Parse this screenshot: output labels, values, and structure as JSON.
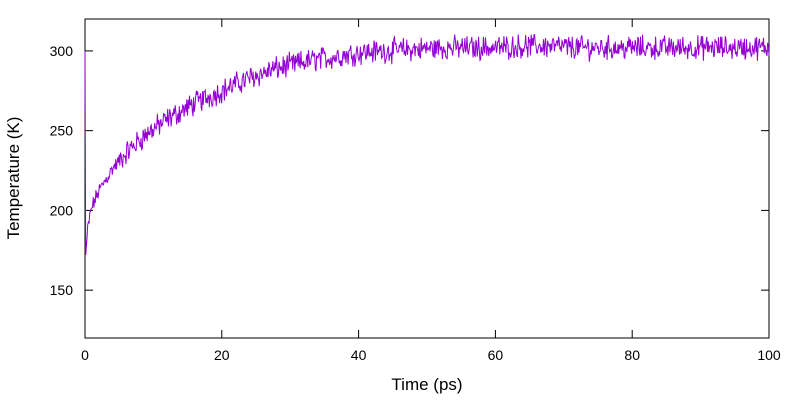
{
  "chart_data": {
    "type": "line",
    "title": "",
    "xlabel": "Time (ps)",
    "ylabel": "Temperature (K)",
    "xlim": [
      0,
      100
    ],
    "ylim": [
      120,
      320
    ],
    "xticks": [
      0,
      20,
      40,
      60,
      80,
      100
    ],
    "yticks": [
      150,
      200,
      250,
      300
    ],
    "grid": false,
    "legend": "none",
    "series": [
      {
        "color": "#9400d3",
        "x": [
          0,
          0.1,
          0.2,
          0.4,
          0.7,
          1,
          1.5,
          2,
          3,
          4,
          5,
          6,
          7,
          8,
          9,
          10,
          12,
          14,
          16,
          18,
          20,
          22,
          24,
          26,
          28,
          30,
          33,
          36,
          40,
          44,
          48,
          52,
          56,
          60,
          64,
          68,
          72,
          76,
          80,
          84,
          88,
          92,
          96,
          100
        ],
        "y": [
          300,
          172,
          178,
          188,
          196,
          202,
          207,
          212,
          219,
          226,
          231,
          236,
          240,
          244,
          248,
          251,
          257,
          262,
          267,
          271,
          275,
          279,
          283,
          286,
          289,
          291,
          294,
          296,
          299,
          300,
          301,
          302,
          302,
          302,
          303,
          303,
          302,
          302,
          302,
          302,
          302,
          302,
          302,
          302
        ]
      }
    ]
  }
}
